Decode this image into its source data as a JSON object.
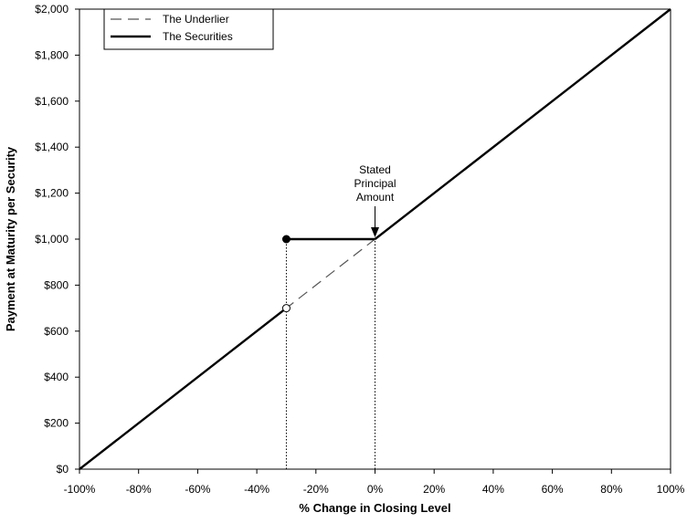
{
  "chart_data": {
    "type": "line",
    "xlabel": "% Change in Closing Level",
    "ylabel": "Payment at Maturity per Security",
    "xlim": [
      -100,
      100
    ],
    "ylim": [
      0,
      2000
    ],
    "x_ticks": [
      -100,
      -80,
      -60,
      -40,
      -20,
      0,
      20,
      40,
      60,
      80,
      100
    ],
    "x_tick_labels": [
      "-100%",
      "-80%",
      "-60%",
      "-40%",
      "-20%",
      "0%",
      "20%",
      "40%",
      "60%",
      "80%",
      "100%"
    ],
    "y_ticks": [
      0,
      200,
      400,
      600,
      800,
      1000,
      1200,
      1400,
      1600,
      1800,
      2000
    ],
    "y_tick_labels": [
      "$0",
      "$200",
      "$400",
      "$600",
      "$800",
      "$1,000",
      "$1,200",
      "$1,400",
      "$1,600",
      "$1,800",
      "$2,000"
    ],
    "legend_position": "top-left",
    "series": [
      {
        "name": "The Underlier",
        "style": "dashed",
        "color": "#555555",
        "x": [
          -100,
          100
        ],
        "y": [
          0,
          2000
        ]
      },
      {
        "name": "The Securities",
        "style": "solid",
        "color": "#000000",
        "segments": [
          {
            "x": [
              -100,
              -30
            ],
            "y": [
              0,
              700
            ]
          },
          {
            "x": [
              -30,
              0
            ],
            "y": [
              1000,
              1000
            ]
          },
          {
            "x": [
              0,
              100
            ],
            "y": [
              1000,
              2000
            ]
          }
        ]
      }
    ],
    "markers": [
      {
        "x": -30,
        "y": 1000,
        "fill": "filled"
      },
      {
        "x": -30,
        "y": 700,
        "fill": "open"
      }
    ],
    "reference_lines": [
      {
        "x": -30,
        "y_from": 0,
        "y_to": 1000,
        "style": "dotted"
      },
      {
        "x": 0,
        "y_from": 0,
        "y_to": 1000,
        "style": "dotted"
      }
    ],
    "annotation": {
      "lines": [
        "Stated",
        "Principal",
        "Amount"
      ],
      "x": 0,
      "y": 1000
    }
  }
}
